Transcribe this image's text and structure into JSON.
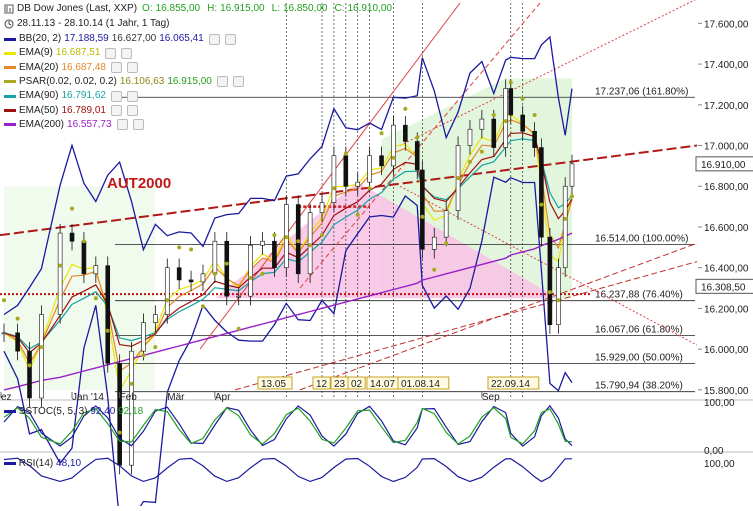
{
  "chart_data": {
    "type": "candlestick",
    "title": "DB Dow Jones (Last, XXP)",
    "ohlc": {
      "o_label": "O:",
      "o": "16.855,00",
      "h_label": "H:",
      "h": "16.915,00",
      "l_label": "L:",
      "l": "16.850,00",
      "c_label": "C:",
      "c": "16.910,00"
    },
    "period": "28.11.13 - 28.10.14 (1 Jahr, 1 Tag)",
    "indicators": [
      {
        "label": "BB(20, 2)",
        "values": [
          "17.188,59",
          "16.627,00",
          "16.065,41"
        ],
        "color": "#1a1aa0",
        "value_colors": [
          "#1a1aa0",
          "#333333",
          "#1a1aa0"
        ]
      },
      {
        "label": "EMA(9)",
        "values": [
          "16.687,51"
        ],
        "color": "#e8e800",
        "value_colors": [
          "#b8b800"
        ]
      },
      {
        "label": "EMA(20)",
        "values": [
          "16.687,48"
        ],
        "color": "#e6862a",
        "value_colors": [
          "#e6862a"
        ]
      },
      {
        "label": "PSAR(0.02, 0.02, 0.2)",
        "values": [
          "16.106,63",
          "16.915,00"
        ],
        "color": "#a8a820",
        "value_colors": [
          "#8a8a10",
          "#22a022"
        ]
      },
      {
        "label": "EMA(90)",
        "values": [
          "16.791,62"
        ],
        "color": "#17a3a3",
        "value_colors": [
          "#17a3a3"
        ]
      },
      {
        "label": "EMA(50)",
        "values": [
          "16.789,01"
        ],
        "color": "#a01010",
        "value_colors": [
          "#a01010"
        ]
      },
      {
        "label": "EMA(200)",
        "values": [
          "16.557,73"
        ],
        "color": "#9a20c8",
        "value_colors": [
          "#9a20c8"
        ]
      }
    ],
    "annotation": "AUT2000",
    "x_tick_labels": [
      "ez",
      "Jan '14",
      "Feb",
      "Mär",
      "Apr",
      "Sep"
    ],
    "date_flags": [
      "13.05",
      "12",
      "23",
      "02",
      "14.07",
      "01.08.14",
      "22.09.14"
    ],
    "y_ticks": [
      "17.600,00",
      "17.400,00",
      "17.200,00",
      "17.000,00",
      "16.800,00",
      "16.600,00",
      "16.400,00",
      "16.200,00",
      "16.000,00",
      "15.800,00"
    ],
    "ylim": [
      15760,
      17700
    ],
    "last_price_tags": [
      "16.910,00",
      "16.308,50"
    ],
    "fib_levels": [
      {
        "value": 17237.06,
        "label": "17.237,06 (161.80%)"
      },
      {
        "value": 16514.0,
        "label": "16.514,00 (100.00%)"
      },
      {
        "value": 16237.88,
        "label": "16.237,88 (76.40%)"
      },
      {
        "value": 16067.06,
        "label": "16.067,06 (61.80%)"
      },
      {
        "value": 15929.0,
        "label": "15.929,00 (50.00%)"
      },
      {
        "value": 15790.94,
        "label": "15.790,94 (38.20%)"
      }
    ],
    "price_series_approx": [
      {
        "d": "2013-11-28",
        "c": 16080
      },
      {
        "d": "2013-12-06",
        "c": 15990
      },
      {
        "d": "2013-12-13",
        "c": 15760
      },
      {
        "d": "2013-12-20",
        "c": 16170
      },
      {
        "d": "2013-12-31",
        "c": 16570
      },
      {
        "d": "2014-01-07",
        "c": 16530
      },
      {
        "d": "2014-01-14",
        "c": 16370
      },
      {
        "d": "2014-01-21",
        "c": 16410
      },
      {
        "d": "2014-01-28",
        "c": 15930
      },
      {
        "d": "2014-02-04",
        "c": 15430
      },
      {
        "d": "2014-02-11",
        "c": 15990
      },
      {
        "d": "2014-02-18",
        "c": 16130
      },
      {
        "d": "2014-02-25",
        "c": 16170
      },
      {
        "d": "2014-03-04",
        "c": 16400
      },
      {
        "d": "2014-03-11",
        "c": 16340
      },
      {
        "d": "2014-03-18",
        "c": 16330
      },
      {
        "d": "2014-03-25",
        "c": 16370
      },
      {
        "d": "2014-04-01",
        "c": 16530
      },
      {
        "d": "2014-04-08",
        "c": 16260
      },
      {
        "d": "2014-04-15",
        "c": 16260
      },
      {
        "d": "2014-04-22",
        "c": 16510
      },
      {
        "d": "2014-04-29",
        "c": 16530
      },
      {
        "d": "2014-05-06",
        "c": 16400
      },
      {
        "d": "2014-05-13",
        "c": 16710
      },
      {
        "d": "2014-05-20",
        "c": 16370
      },
      {
        "d": "2014-05-27",
        "c": 16670
      },
      {
        "d": "2014-06-03",
        "c": 16720
      },
      {
        "d": "2014-06-10",
        "c": 16950
      },
      {
        "d": "2014-06-17",
        "c": 16800
      },
      {
        "d": "2014-06-24",
        "c": 16820
      },
      {
        "d": "2014-07-01",
        "c": 16950
      },
      {
        "d": "2014-07-08",
        "c": 16900
      },
      {
        "d": "2014-07-15",
        "c": 17100
      },
      {
        "d": "2014-07-22",
        "c": 17020
      },
      {
        "d": "2014-07-29",
        "c": 16880
      },
      {
        "d": "2014-08-01",
        "c": 16490
      },
      {
        "d": "2014-08-08",
        "c": 16550
      },
      {
        "d": "2014-08-15",
        "c": 16680
      },
      {
        "d": "2014-08-22",
        "c": 17000
      },
      {
        "d": "2014-08-29",
        "c": 17080
      },
      {
        "d": "2014-09-05",
        "c": 17130
      },
      {
        "d": "2014-09-12",
        "c": 16990
      },
      {
        "d": "2014-09-19",
        "c": 17280
      },
      {
        "d": "2014-09-22",
        "c": 17150
      },
      {
        "d": "2014-09-29",
        "c": 17070
      },
      {
        "d": "2014-10-06",
        "c": 16990
      },
      {
        "d": "2014-10-10",
        "c": 16550
      },
      {
        "d": "2014-10-15",
        "c": 16120
      },
      {
        "d": "2014-10-20",
        "c": 16400
      },
      {
        "d": "2014-10-24",
        "c": 16800
      },
      {
        "d": "2014-10-28",
        "c": 16910
      }
    ],
    "sstoc": {
      "label": "SSTOC(5, 5, 3)",
      "values": [
        "92,40",
        "92,18"
      ],
      "y_ticks": [
        "100,00",
        "0,00"
      ]
    },
    "rsi": {
      "label": "RSI(14)",
      "value": "48,10",
      "y_ticks": [
        "100,00"
      ]
    }
  }
}
